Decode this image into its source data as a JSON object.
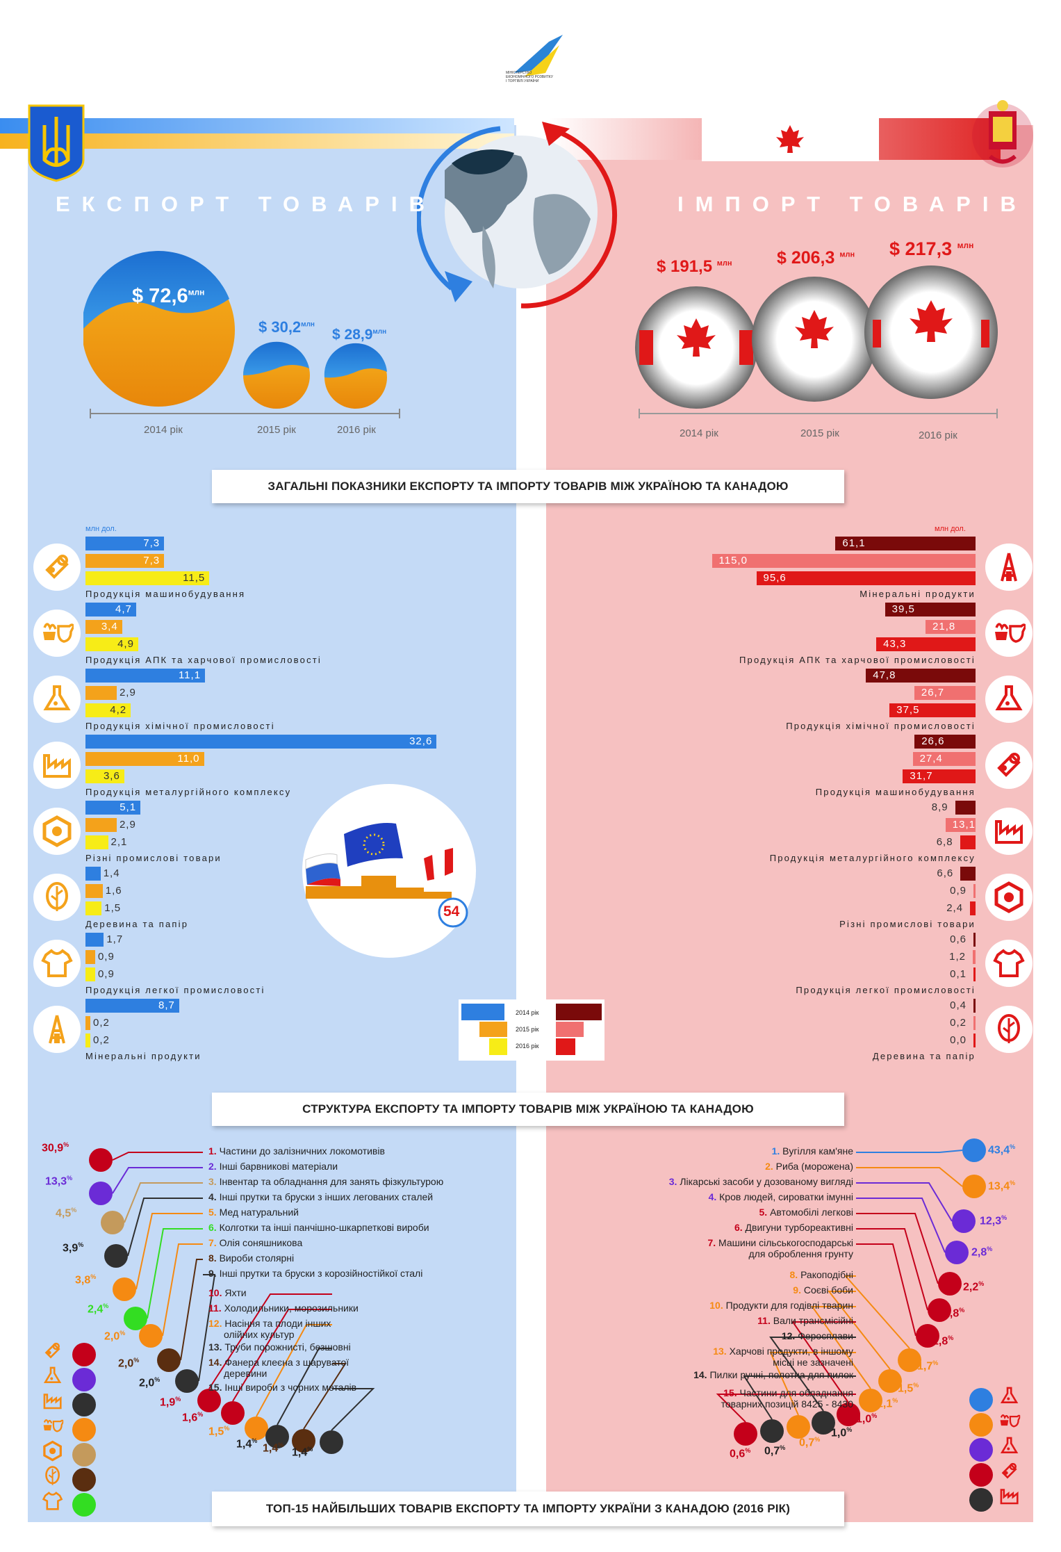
{
  "logo": {
    "line1": "МІНІСТЕРСТВО",
    "line2": "ЕКОНОМІЧНОГО РОЗВИТКУ",
    "line3": "І ТОРГІВЛІ УКРАЇНИ"
  },
  "colors": {
    "ua_blue": "#2e7fe0",
    "ua_orange": "#f4a21b",
    "ua_yellow": "#f7ec17",
    "ca_dark": "#7a0a0a",
    "ca_mid": "#f07070",
    "ca_red": "#e01818"
  },
  "export": {
    "title": "ЕКСПОРТ ТОВАРІВ",
    "totals": [
      {
        "value": "$ 72,6",
        "unit": "млн",
        "year": "2014 рік"
      },
      {
        "value": "$ 30,2",
        "unit": "млн",
        "year": "2015 рік"
      },
      {
        "value": "$ 28,9",
        "unit": "млн",
        "year": "2016 рік"
      }
    ]
  },
  "import": {
    "title": "ІМПОРТ ТОВАРІВ",
    "totals": [
      {
        "value": "$ 191,5",
        "unit": "млн",
        "year": "2014 рік"
      },
      {
        "value": "$ 206,3",
        "unit": "млн",
        "year": "2015 рік"
      },
      {
        "value": "$ 217,3",
        "unit": "млн",
        "year": "2016 рік"
      }
    ]
  },
  "section1": {
    "title": "ЗАГАЛЬНІ ПОКАЗНИКИ ЕКСПОРТУ ТА ІМПОРТУ ТОВАРІВ МІЖ УКРАЇНОЮ ТА КАНАДОЮ",
    "unit_left": "млн дол.",
    "unit_right": "млн дол."
  },
  "legend": {
    "y2014": "2014 рік",
    "y2015": "2015 рік",
    "y2016": "2016 рік"
  },
  "badge": "54",
  "chart_data": [
    {
      "type": "bar",
      "title": "Експорт (млн дол.)",
      "series_names": [
        "2014",
        "2015",
        "2016"
      ],
      "categories": [
        "Продукція машинобудування",
        "Продукція АПК та харчової промисловості",
        "Продукція хімічної промисловості",
        "Продукція металургійного комплексу",
        "Різні промислові товари",
        "Деревина та папір",
        "Продукція легкої промисловості",
        "Мінеральні продукти"
      ],
      "labels": [
        [
          "7,3",
          "7,3",
          "11,5"
        ],
        [
          "4,7",
          "3,4",
          "4,9"
        ],
        [
          "11,1",
          "2,9",
          "4,2"
        ],
        [
          "32,6",
          "11,0",
          "3,6"
        ],
        [
          "5,1",
          "2,9",
          "2,1"
        ],
        [
          "1,4",
          "1,6",
          "1,5"
        ],
        [
          "1,7",
          "0,9",
          "0,9"
        ],
        [
          "8,7",
          "0,2",
          "0,2"
        ]
      ],
      "values": [
        [
          7.3,
          7.3,
          11.5
        ],
        [
          4.7,
          3.4,
          4.9
        ],
        [
          11.1,
          2.9,
          4.2
        ],
        [
          32.6,
          11.0,
          3.6
        ],
        [
          5.1,
          2.9,
          2.1
        ],
        [
          1.4,
          1.6,
          1.5
        ],
        [
          1.7,
          0.9,
          0.9
        ],
        [
          8.7,
          0.2,
          0.2
        ]
      ]
    },
    {
      "type": "bar",
      "title": "Імпорт (млн дол.)",
      "series_names": [
        "2014",
        "2015",
        "2016"
      ],
      "categories": [
        "Мінеральні продукти",
        "Продукція АПК та  харчової промисловості",
        "Продукція хімічної промисловості",
        "Продукція машинобудування",
        "Продукція металургійного комплексу",
        "Різні промислові товари",
        "Продукція легкої промисловості",
        "Деревина та папір"
      ],
      "labels": [
        [
          "61,1",
          "115,0",
          "95,6"
        ],
        [
          "39,5",
          "21,8",
          "43,3"
        ],
        [
          "47,8",
          "26,7",
          "37,5"
        ],
        [
          "26,6",
          "27,4",
          "31,7"
        ],
        [
          "8,9",
          "13,1",
          "6,8"
        ],
        [
          "6,6",
          "0,9",
          "2,4"
        ],
        [
          "0,6",
          "1,2",
          "0,1"
        ],
        [
          "0,4",
          "0,2",
          "0,0"
        ]
      ],
      "values": [
        [
          61.1,
          115.0,
          95.6
        ],
        [
          39.5,
          21.8,
          43.3
        ],
        [
          47.8,
          26.7,
          37.5
        ],
        [
          26.6,
          27.4,
          31.7
        ],
        [
          8.9,
          13.1,
          6.8
        ],
        [
          6.6,
          0.9,
          2.4
        ],
        [
          0.6,
          1.2,
          0.1
        ],
        [
          0.4,
          0.2,
          0.0
        ]
      ]
    }
  ],
  "section2": {
    "title": "СТРУКТУРА ЕКСПОРТУ ТА ІМПОРТУ ТОВАРІВ МІЖ УКРАЇНОЮ ТА КАНАДОЮ"
  },
  "export_top": [
    {
      "n": "1.",
      "name": "Частини до залізничних локомотивів",
      "pct": "30,9",
      "color": "#c4001a"
    },
    {
      "n": "2.",
      "name": "Інші барвникові матеріали",
      "pct": "13,3",
      "color": "#6b2bd6"
    },
    {
      "n": "3.",
      "name": "Інвентар та обладнання для занять фізкультурою",
      "pct": "4,5",
      "color": "#c49a5c"
    },
    {
      "n": "4.",
      "name": "Інші прутки та бруски з інших легованих сталей",
      "pct": "3,9",
      "color": "#303030"
    },
    {
      "n": "5.",
      "name": "Мед натуральний",
      "pct": "3,8",
      "color": "#f58a12"
    },
    {
      "n": "6.",
      "name": "Колготки та інші панчішно-шкарпеткові вироби",
      "pct": "2,4",
      "color": "#33dd22"
    },
    {
      "n": "7.",
      "name": "Олія соняшникова",
      "pct": "2,0",
      "color": "#f58a12"
    },
    {
      "n": "8.",
      "name": "Вироби столярні",
      "pct": "2,0",
      "color": "#5a2e10"
    },
    {
      "n": "9.",
      "name": "Інші прутки та бруски з корозійностійкої сталі",
      "pct": "2,0",
      "color": "#303030"
    },
    {
      "n": "10.",
      "name": "Яхти",
      "pct": "1,9",
      "color": "#c4001a"
    },
    {
      "n": "11.",
      "name": "Холодильники, морозильники",
      "pct": "1,6",
      "color": "#c4001a"
    },
    {
      "n": "12.",
      "name": "Насіння та плоди інших",
      "name2": "олійних культур",
      "pct": "1,5",
      "color": "#f58a12"
    },
    {
      "n": "13.",
      "name": "Труби порожнисті, безшовні",
      "pct": "1,4",
      "color": "#303030"
    },
    {
      "n": "14.",
      "name": "Фанера клеєна з шаруватої",
      "name2": "деревини",
      "pct": "1,4",
      "color": "#5a2e10"
    },
    {
      "n": "15.",
      "name": "Інші вироби з чорних металів",
      "pct": "1,4",
      "color": "#303030"
    }
  ],
  "import_top": [
    {
      "n": "1.",
      "name": "Вугілля кам'яне",
      "pct": "43,4",
      "color": "#2e7fe0"
    },
    {
      "n": "2.",
      "name": "Риба (морожена)",
      "pct": "13,4",
      "color": "#f58a12"
    },
    {
      "n": "3.",
      "name": "Лікарські засоби у дозованому вигляді",
      "pct": "12,3",
      "color": "#6b2bd6"
    },
    {
      "n": "4.",
      "name": "Кров людей, сироватки імунні",
      "pct": "2,8",
      "color": "#6b2bd6"
    },
    {
      "n": "5.",
      "name": "Автомобілі легкові",
      "pct": "2,2",
      "color": "#c4001a"
    },
    {
      "n": "6.",
      "name": "Двигуни турбореактивні",
      "pct": "1,8",
      "color": "#c4001a"
    },
    {
      "n": "7.",
      "name": "Машини сільськогосподарські",
      "name2": "для оброблення грунту",
      "pct": "1,8",
      "color": "#c4001a"
    },
    {
      "n": "8.",
      "name": "Ракоподібні",
      "pct": "1,7",
      "color": "#f58a12"
    },
    {
      "n": "9.",
      "name": "Соєві боби",
      "pct": "1,5",
      "color": "#f58a12"
    },
    {
      "n": "10.",
      "name": "Продукти для годівлі тварин",
      "pct": "1,1",
      "color": "#f58a12"
    },
    {
      "n": "11.",
      "name": "Вали трансмісійні",
      "pct": "1,0",
      "color": "#c4001a"
    },
    {
      "n": "12.",
      "name": "Феросплави",
      "pct": "1,0",
      "color": "#303030"
    },
    {
      "n": "13.",
      "name": "Харчові продукти, в іншому",
      "name2": "місці не зазначені",
      "pct": "0,7",
      "color": "#f58a12"
    },
    {
      "n": "14.",
      "name": "Пилки ручні, полотна для пилок",
      "pct": "0,7",
      "color": "#303030"
    },
    {
      "n": "15.",
      "name": "Частини для обладнання",
      "name2": "товарних позицій 8425 - 8430",
      "pct": "0,6",
      "color": "#c4001a"
    }
  ],
  "section3": {
    "title": "ТОП-15 НАЙБІЛЬШИХ ТОВАРІВ ЕКСПОРТУ ТА ІМПОРТУ УКРАЇНИ З КАНАДОЮ (2016 РІК)"
  }
}
